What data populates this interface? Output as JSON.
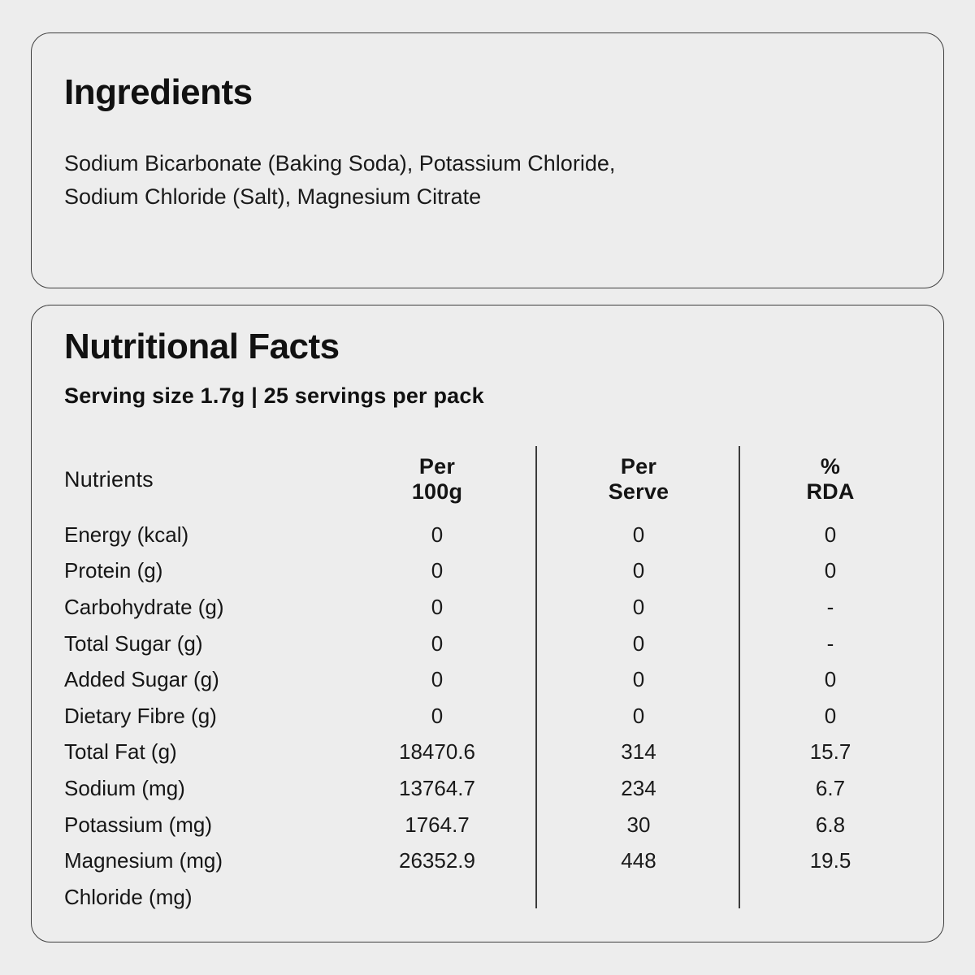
{
  "theme": {
    "page_background": "#ededed",
    "card_background": "#ededed",
    "card_border_color": "#3f3f3f",
    "divider_color": "#3c3c3c",
    "text_color": "#141414"
  },
  "ingredients_card": {
    "title": "Ingredients",
    "lines": [
      "Sodium Bicarbonate (Baking Soda), Potassium Chloride,",
      "Sodium Chloride (Salt), Magnesium Citrate"
    ]
  },
  "nutrition_card": {
    "title": "Nutritional Facts",
    "serving_line": "Serving size 1.7g | 25 servings per pack",
    "table": {
      "headers": {
        "nutrients": "Nutrients",
        "per_100g_line1": "Per",
        "per_100g_line2": "100g",
        "per_serve_line1": "Per",
        "per_serve_line2": "Serve",
        "rda_line1": "%",
        "rda_line2": "RDA"
      },
      "rows": [
        {
          "label": "Energy (kcal)",
          "per_100g": "0",
          "per_serve": "0",
          "rda": "0"
        },
        {
          "label": "Protein (g)",
          "per_100g": "0",
          "per_serve": "0",
          "rda": "0"
        },
        {
          "label": "Carbohydrate (g)",
          "per_100g": "0",
          "per_serve": "0",
          "rda": "-"
        },
        {
          "label": "Total Sugar (g)",
          "per_100g": "0",
          "per_serve": "0",
          "rda": "-"
        },
        {
          "label": "Added Sugar (g)",
          "per_100g": "0",
          "per_serve": "0",
          "rda": "0"
        },
        {
          "label": "Dietary Fibre (g)",
          "per_100g": "0",
          "per_serve": "0",
          "rda": "0"
        },
        {
          "label": "Total Fat (g)",
          "per_100g": "18470.6",
          "per_serve": "314",
          "rda": "15.7"
        },
        {
          "label": "Sodium (mg)",
          "per_100g": "13764.7",
          "per_serve": "234",
          "rda": "6.7"
        },
        {
          "label": "Potassium (mg)",
          "per_100g": "1764.7",
          "per_serve": "30",
          "rda": "6.8"
        },
        {
          "label": "Magnesium (mg)",
          "per_100g": "26352.9",
          "per_serve": "448",
          "rda": "19.5"
        },
        {
          "label": "Chloride (mg)",
          "per_100g": "",
          "per_serve": "",
          "rda": ""
        }
      ]
    }
  }
}
